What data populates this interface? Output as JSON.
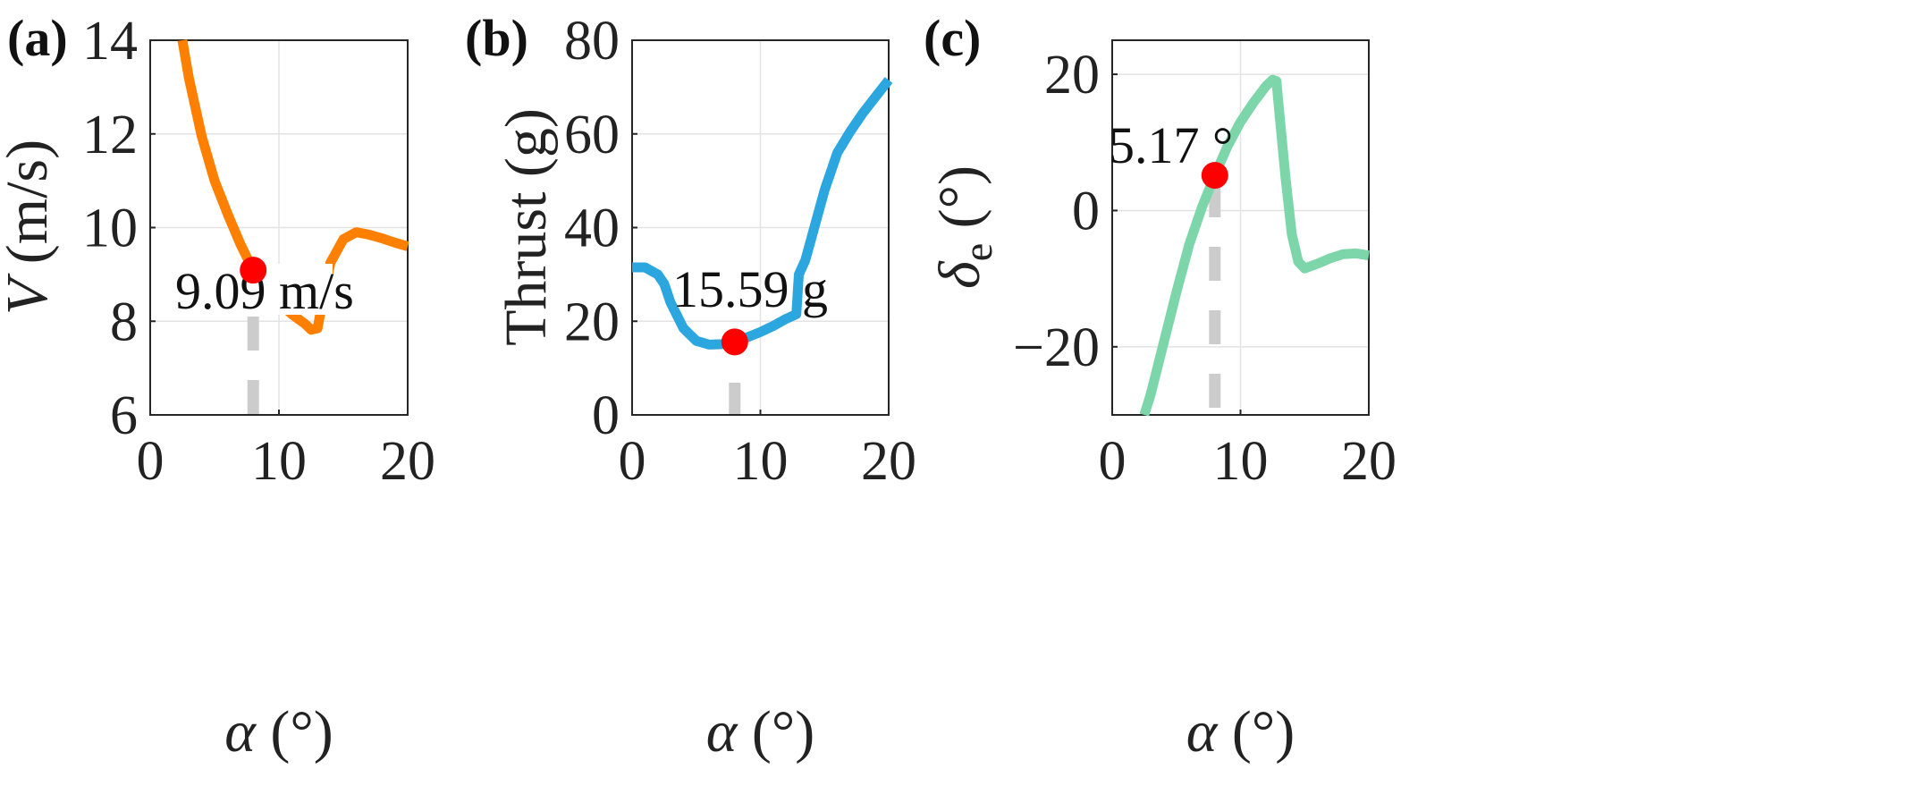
{
  "chart_data": [
    {
      "type": "line",
      "panel_label": "(a)",
      "xlabel_symbol": "α",
      "xlabel_unit": "(°)",
      "ylabel_symbol": "V",
      "ylabel_unit": "(m/s)",
      "xlim": [
        0,
        20
      ],
      "ylim": [
        6,
        14
      ],
      "xticks": [
        0,
        10,
        20
      ],
      "yticks": [
        6,
        8,
        10,
        12,
        14
      ],
      "grid": true,
      "color": "#ff8000",
      "series": [
        {
          "x": [
            2.5,
            3,
            4,
            5,
            6,
            7,
            8,
            9,
            10,
            11,
            12,
            12.5,
            13,
            13.5,
            14,
            15,
            16,
            17,
            18,
            19,
            20
          ],
          "y": [
            14.0,
            13.2,
            11.95,
            11.0,
            10.3,
            9.65,
            9.09,
            8.7,
            8.4,
            8.15,
            7.95,
            7.82,
            7.85,
            8.6,
            9.25,
            9.75,
            9.9,
            9.85,
            9.77,
            9.68,
            9.6
          ]
        }
      ],
      "marker": {
        "x": 8,
        "y": 9.09,
        "color": "#ff0000"
      },
      "annotation": "9.09 m/s",
      "dash_color": "#cccccc"
    },
    {
      "type": "line",
      "panel_label": "(b)",
      "xlabel_symbol": "α",
      "xlabel_unit": "(°)",
      "ylabel": "Thrust (g)",
      "xlim": [
        0,
        20
      ],
      "ylim": [
        0,
        80
      ],
      "xticks": [
        0,
        10,
        20
      ],
      "yticks": [
        0,
        20,
        40,
        60,
        80
      ],
      "grid": true,
      "color": "#2ca6df",
      "series": [
        {
          "x": [
            0,
            1,
            2,
            2.5,
            3,
            4,
            5,
            6,
            7,
            8,
            9,
            10,
            11,
            12,
            12.8,
            13,
            13.5,
            14,
            15,
            16,
            17,
            18,
            19,
            20
          ],
          "y": [
            31.5,
            31.5,
            30,
            28,
            24,
            18.5,
            15.8,
            15.0,
            15.1,
            15.59,
            16.6,
            17.7,
            19.0,
            20.5,
            21.5,
            30,
            33,
            38,
            48,
            56,
            60.5,
            64.5,
            68,
            71.5
          ]
        }
      ],
      "marker": {
        "x": 8,
        "y": 15.59,
        "color": "#ff0000"
      },
      "annotation": "15.59 g",
      "dash_color": "#cccccc"
    },
    {
      "type": "line",
      "panel_label": "(c)",
      "xlabel_symbol": "α",
      "xlabel_unit": "(°)",
      "ylabel_symbol": "δ",
      "ylabel_subscript": "e",
      "ylabel_unit": "(°)",
      "xlim": [
        0,
        20
      ],
      "ylim": [
        -30,
        25
      ],
      "xticks": [
        0,
        10,
        20
      ],
      "yticks": [
        -20,
        0,
        20
      ],
      "ytick_labels": [
        "−20",
        "0",
        "20"
      ],
      "grid": true,
      "color": "#7dd6a9",
      "series": [
        {
          "x": [
            2.5,
            3,
            4,
            5,
            6,
            7,
            8,
            9,
            10,
            11,
            12,
            12.5,
            12.8,
            13,
            13.5,
            14,
            14.5,
            15,
            16,
            17,
            18,
            19,
            20
          ],
          "y": [
            -30,
            -27,
            -19.5,
            -12,
            -5,
            0.5,
            5.17,
            9.5,
            13,
            15.8,
            18.3,
            19.2,
            19,
            15,
            5,
            -3.5,
            -7.5,
            -8.5,
            -7.8,
            -7,
            -6.4,
            -6.3,
            -6.6
          ]
        }
      ],
      "marker": {
        "x": 8,
        "y": 5.17,
        "color": "#ff0000"
      },
      "annotation": "5.17 °",
      "dash_color": "#cccccc"
    }
  ]
}
